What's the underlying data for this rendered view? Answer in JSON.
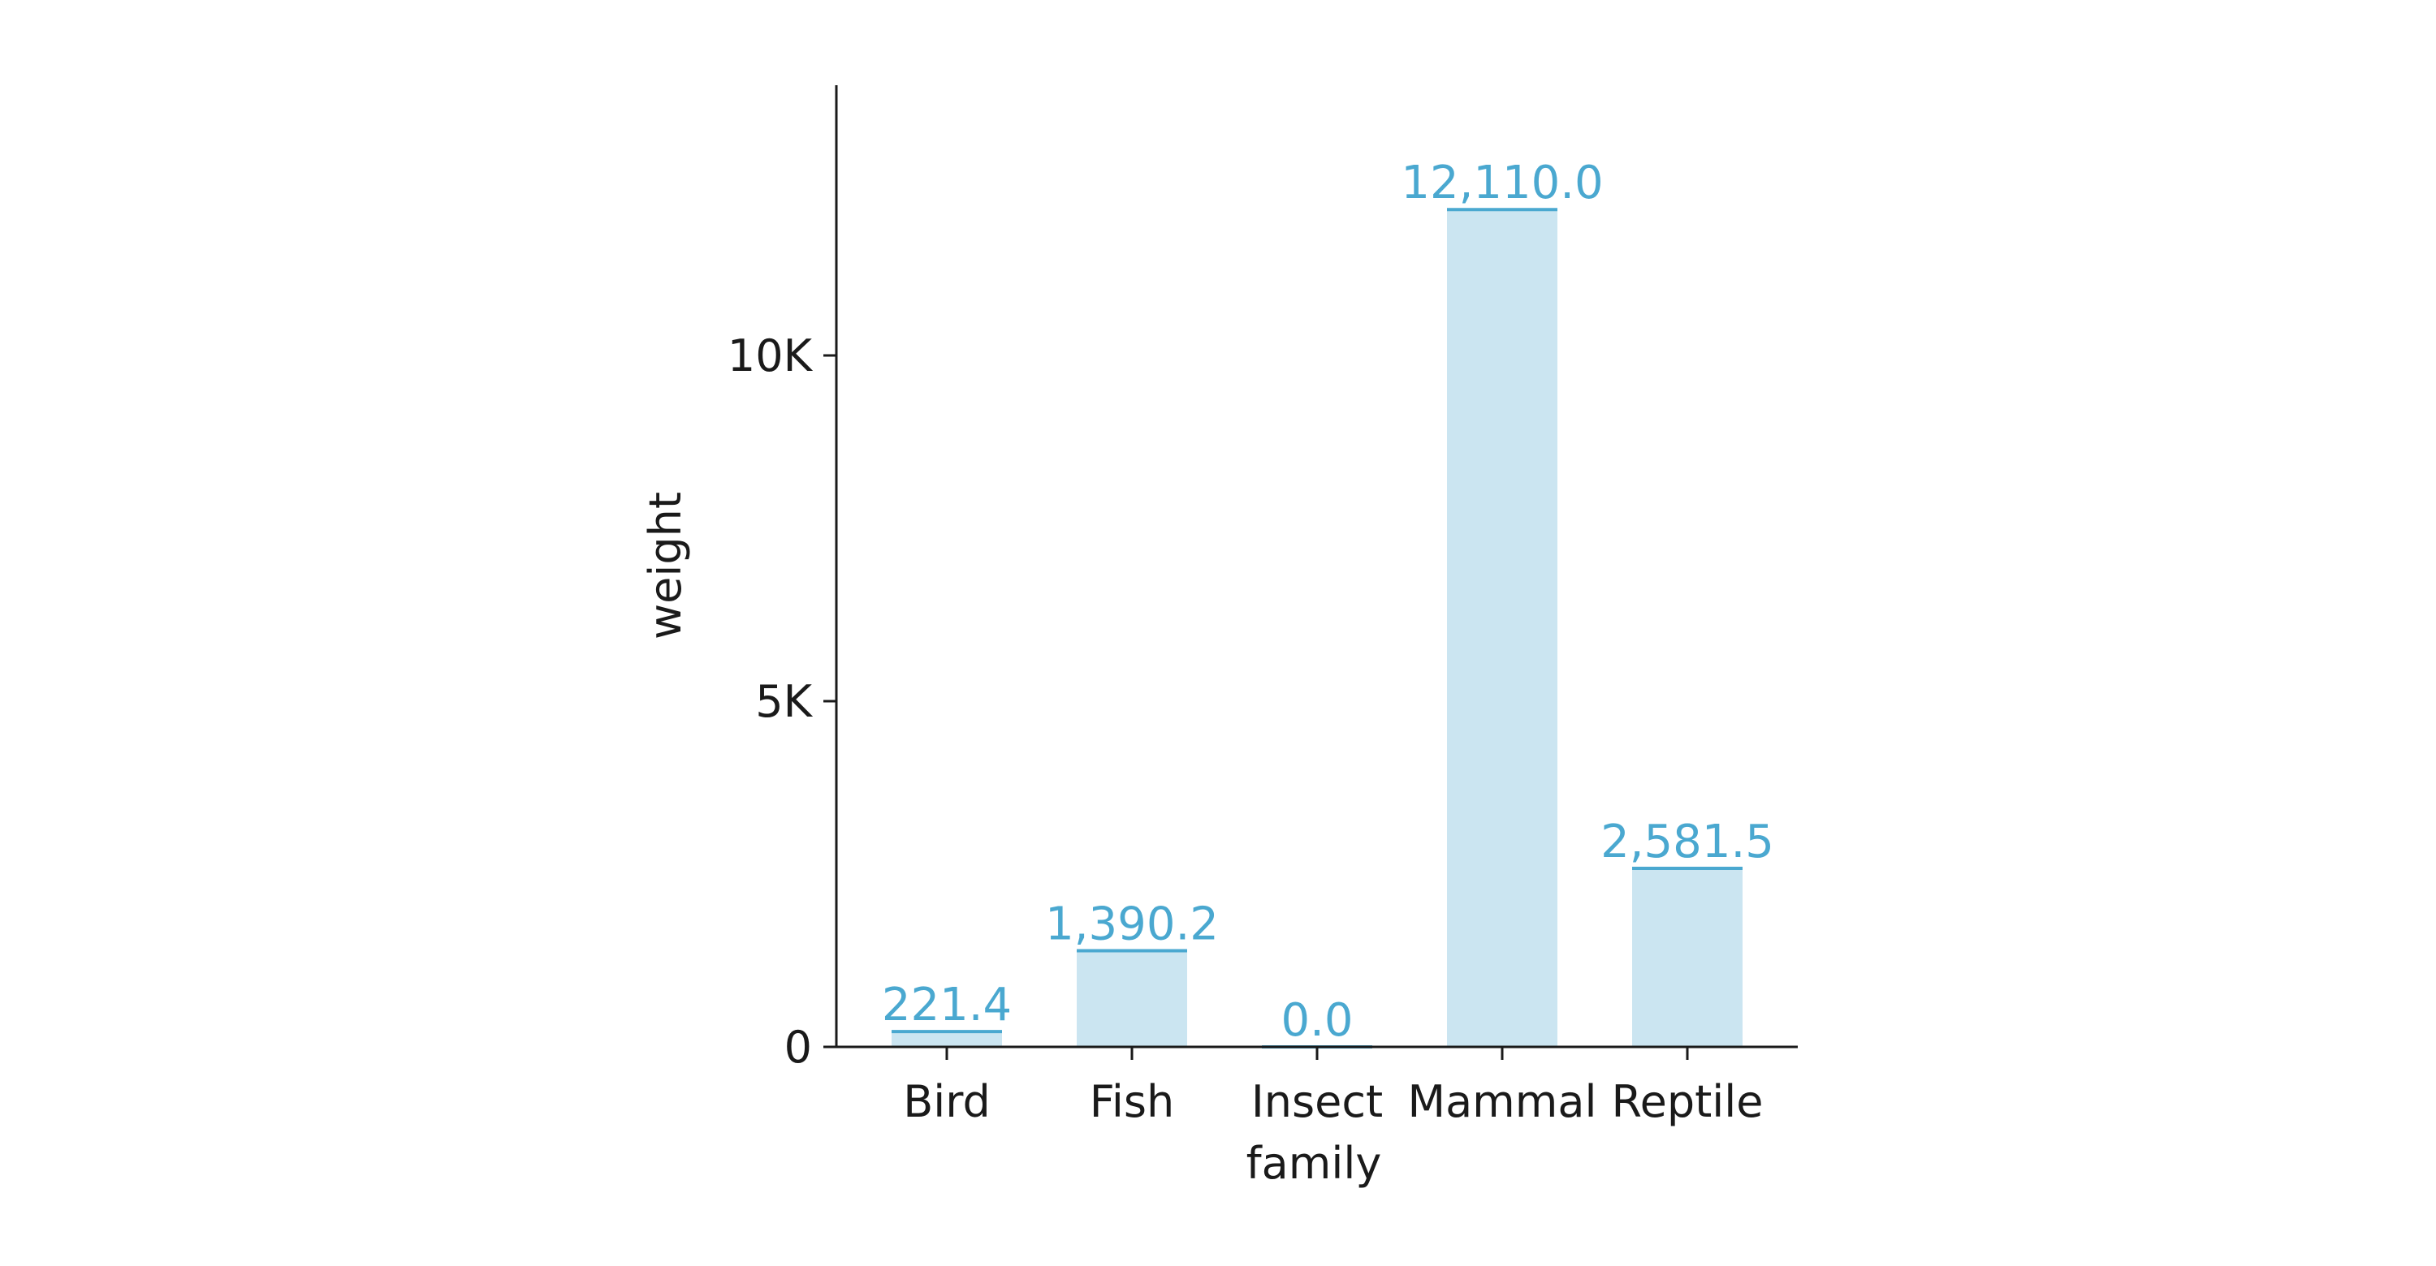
{
  "chart_data": {
    "type": "bar",
    "title": "",
    "xlabel": "family",
    "ylabel": "weight",
    "categories": [
      "Bird",
      "Fish",
      "Insect",
      "Mammal",
      "Reptile"
    ],
    "values": [
      221.4,
      1390.2,
      0.0,
      12110.0,
      2581.5
    ],
    "data_labels": [
      "221.4",
      "1,390.2",
      "0.0",
      "12,110.0",
      "2,581.5"
    ],
    "yticks": [
      0,
      5000,
      10000
    ],
    "ytick_labels": [
      "0",
      "5K",
      "10K"
    ],
    "ylim": [
      0,
      13900
    ],
    "grid": false,
    "colors": {
      "bar_fill": "#cbe5f1",
      "bar_top": "#4aa8d0",
      "data_label": "#4aa8d0",
      "axis": "#1a1a1a"
    }
  }
}
